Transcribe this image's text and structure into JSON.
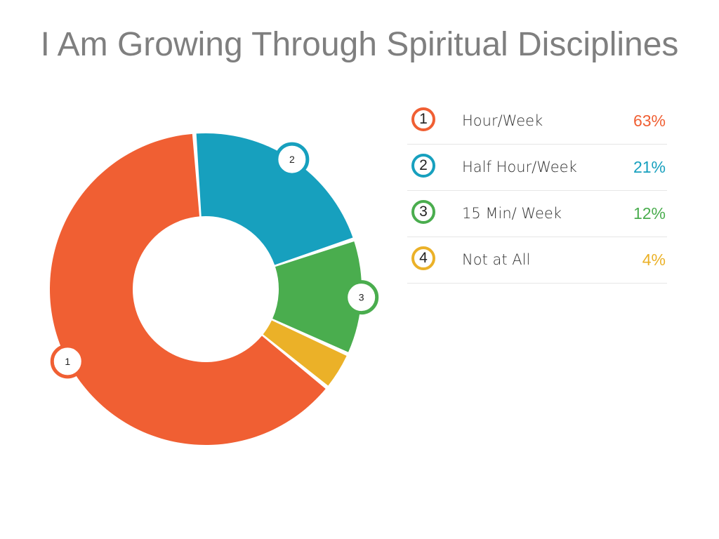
{
  "title": "I Am Growing Through Spiritual Disciplines",
  "chart_data": {
    "type": "pie",
    "variant": "donut",
    "title": "I Am Growing Through Spiritual Disciplines",
    "slices": [
      {
        "number": "1",
        "label": "Hour/Week",
        "value": 63,
        "value_label": "63%",
        "color": "#f05f33"
      },
      {
        "number": "2",
        "label": "Half Hour/Week",
        "value": 21,
        "value_label": "21%",
        "color": "#17a0be"
      },
      {
        "number": "3",
        "label": "15 Min/ Week",
        "value": 12,
        "value_label": "12%",
        "color": "#4aad4e"
      },
      {
        "number": "4",
        "label": "Not at All",
        "value": 4,
        "value_label": "4%",
        "color": "#ebb128"
      }
    ],
    "legend_position": "right",
    "start_angle_deg": 129
  }
}
